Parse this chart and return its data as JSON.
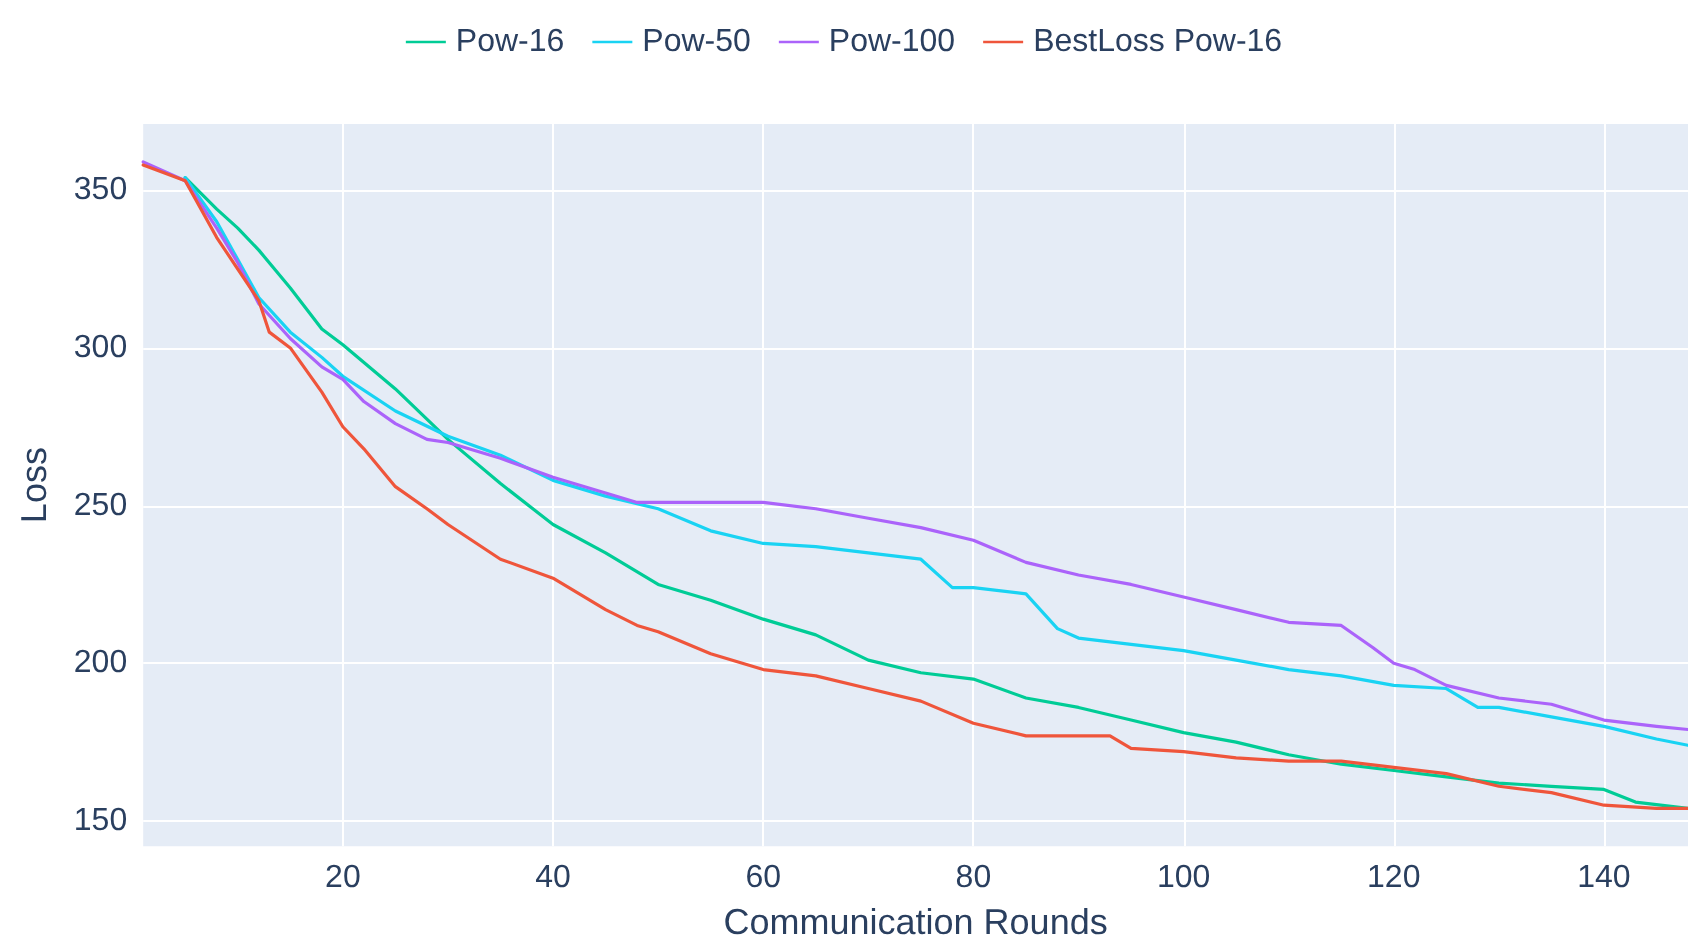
{
  "chart_data": {
    "type": "line",
    "xlabel": "Communication Rounds",
    "ylabel": "Loss",
    "xlim": [
      1,
      148
    ],
    "xticks": [
      20,
      40,
      60,
      80,
      100,
      120,
      140
    ],
    "ylim": [
      142,
      371
    ],
    "yticks": [
      150,
      200,
      250,
      300,
      350
    ],
    "grid": true,
    "legend": "top",
    "marker": "none",
    "line_style": "solid",
    "series": [
      {
        "name": "Pow-16",
        "color": "#00cc96",
        "x": [
          5,
          8,
          10,
          12,
          15,
          18,
          20,
          25,
          30,
          35,
          40,
          45,
          50,
          55,
          60,
          65,
          70,
          75,
          80,
          85,
          90,
          95,
          100,
          105,
          110,
          115,
          120,
          125,
          130,
          135,
          140,
          143,
          148
        ],
        "values": [
          354,
          344,
          338,
          331,
          319,
          306,
          301,
          287,
          271,
          257,
          244,
          235,
          225,
          220,
          214,
          209,
          201,
          197,
          195,
          189,
          186,
          182,
          178,
          175,
          171,
          168,
          166,
          164,
          162,
          161,
          160,
          156,
          154
        ]
      },
      {
        "name": "Pow-50",
        "color": "#19d3f3",
        "x": [
          5,
          8,
          10,
          12,
          15,
          18,
          20,
          25,
          30,
          35,
          40,
          45,
          50,
          55,
          60,
          65,
          70,
          75,
          78,
          80,
          85,
          88,
          90,
          95,
          100,
          105,
          110,
          115,
          120,
          125,
          128,
          130,
          135,
          140,
          145,
          148
        ],
        "values": [
          354,
          340,
          328,
          316,
          305,
          297,
          291,
          280,
          272,
          266,
          258,
          253,
          249,
          242,
          238,
          237,
          235,
          233,
          224,
          224,
          222,
          211,
          208,
          206,
          204,
          201,
          198,
          196,
          193,
          192,
          186,
          186,
          183,
          180,
          176,
          174
        ]
      },
      {
        "name": "Pow-100",
        "color": "#ab63fa",
        "x": [
          1,
          5,
          8,
          10,
          12,
          15,
          18,
          20,
          22,
          25,
          28,
          30,
          35,
          40,
          45,
          48,
          50,
          55,
          60,
          65,
          70,
          75,
          80,
          85,
          90,
          95,
          100,
          105,
          110,
          115,
          118,
          120,
          122,
          125,
          130,
          135,
          140,
          145,
          148
        ],
        "values": [
          359,
          353,
          338,
          327,
          314,
          303,
          294,
          290,
          283,
          276,
          271,
          270,
          265,
          259,
          254,
          251,
          251,
          251,
          251,
          249,
          246,
          243,
          239,
          232,
          228,
          225,
          221,
          217,
          213,
          212,
          205,
          200,
          198,
          193,
          189,
          187,
          182,
          180,
          179
        ]
      },
      {
        "name": "BestLoss Pow-16",
        "color": "#ef553b",
        "x": [
          1,
          5,
          8,
          10,
          12,
          13,
          15,
          18,
          20,
          22,
          25,
          28,
          30,
          35,
          40,
          45,
          48,
          50,
          55,
          60,
          65,
          70,
          75,
          80,
          85,
          90,
          93,
          95,
          100,
          105,
          110,
          115,
          120,
          125,
          130,
          135,
          140,
          145,
          148
        ],
        "values": [
          358,
          353,
          335,
          325,
          315,
          305,
          300,
          286,
          275,
          268,
          256,
          249,
          244,
          233,
          227,
          217,
          212,
          210,
          203,
          198,
          196,
          192,
          188,
          181,
          177,
          177,
          177,
          173,
          172,
          170,
          169,
          169,
          167,
          165,
          161,
          159,
          155,
          154,
          154
        ]
      }
    ]
  }
}
